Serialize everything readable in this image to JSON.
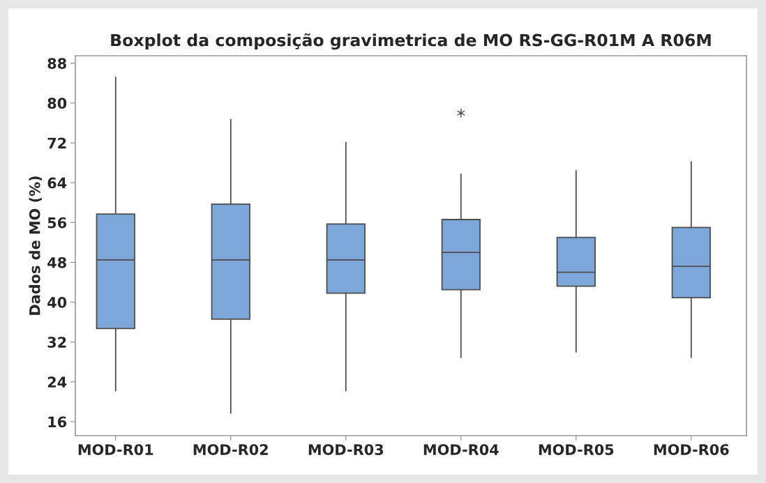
{
  "chart_data": {
    "type": "box",
    "title": "Boxplot da composição gravimetrica de MO RS-GG-R01M A R06M",
    "ylabel": "Dados de MO (%)",
    "categories": [
      "MOD-R01",
      "MOD-R02",
      "MOD-R03",
      "MOD-R04",
      "MOD-R05",
      "MOD-R06"
    ],
    "color": "#7da7d9",
    "boxes": [
      {
        "low": 22.2,
        "q1": 34.7,
        "median": 48.5,
        "q3": 57.7,
        "high": 85.2
      },
      {
        "low": 17.7,
        "q1": 36.6,
        "median": 48.5,
        "q3": 59.7,
        "high": 76.7
      },
      {
        "low": 22.2,
        "q1": 41.8,
        "median": 48.5,
        "q3": 55.7,
        "high": 72.1
      },
      {
        "low": 28.9,
        "q1": 42.5,
        "median": 50.0,
        "q3": 56.6,
        "high": 65.7,
        "outliers": [
          78.0
        ]
      },
      {
        "low": 30.0,
        "q1": 43.2,
        "median": 46.0,
        "q3": 53.0,
        "high": 66.4
      },
      {
        "low": 28.9,
        "q1": 40.9,
        "median": 47.2,
        "q3": 55.0,
        "high": 68.2
      }
    ],
    "ylim": [
      13.2,
      89.5
    ],
    "yticks": [
      16,
      24,
      32,
      40,
      48,
      56,
      64,
      72,
      80,
      88
    ],
    "grid": false,
    "legend": false
  }
}
